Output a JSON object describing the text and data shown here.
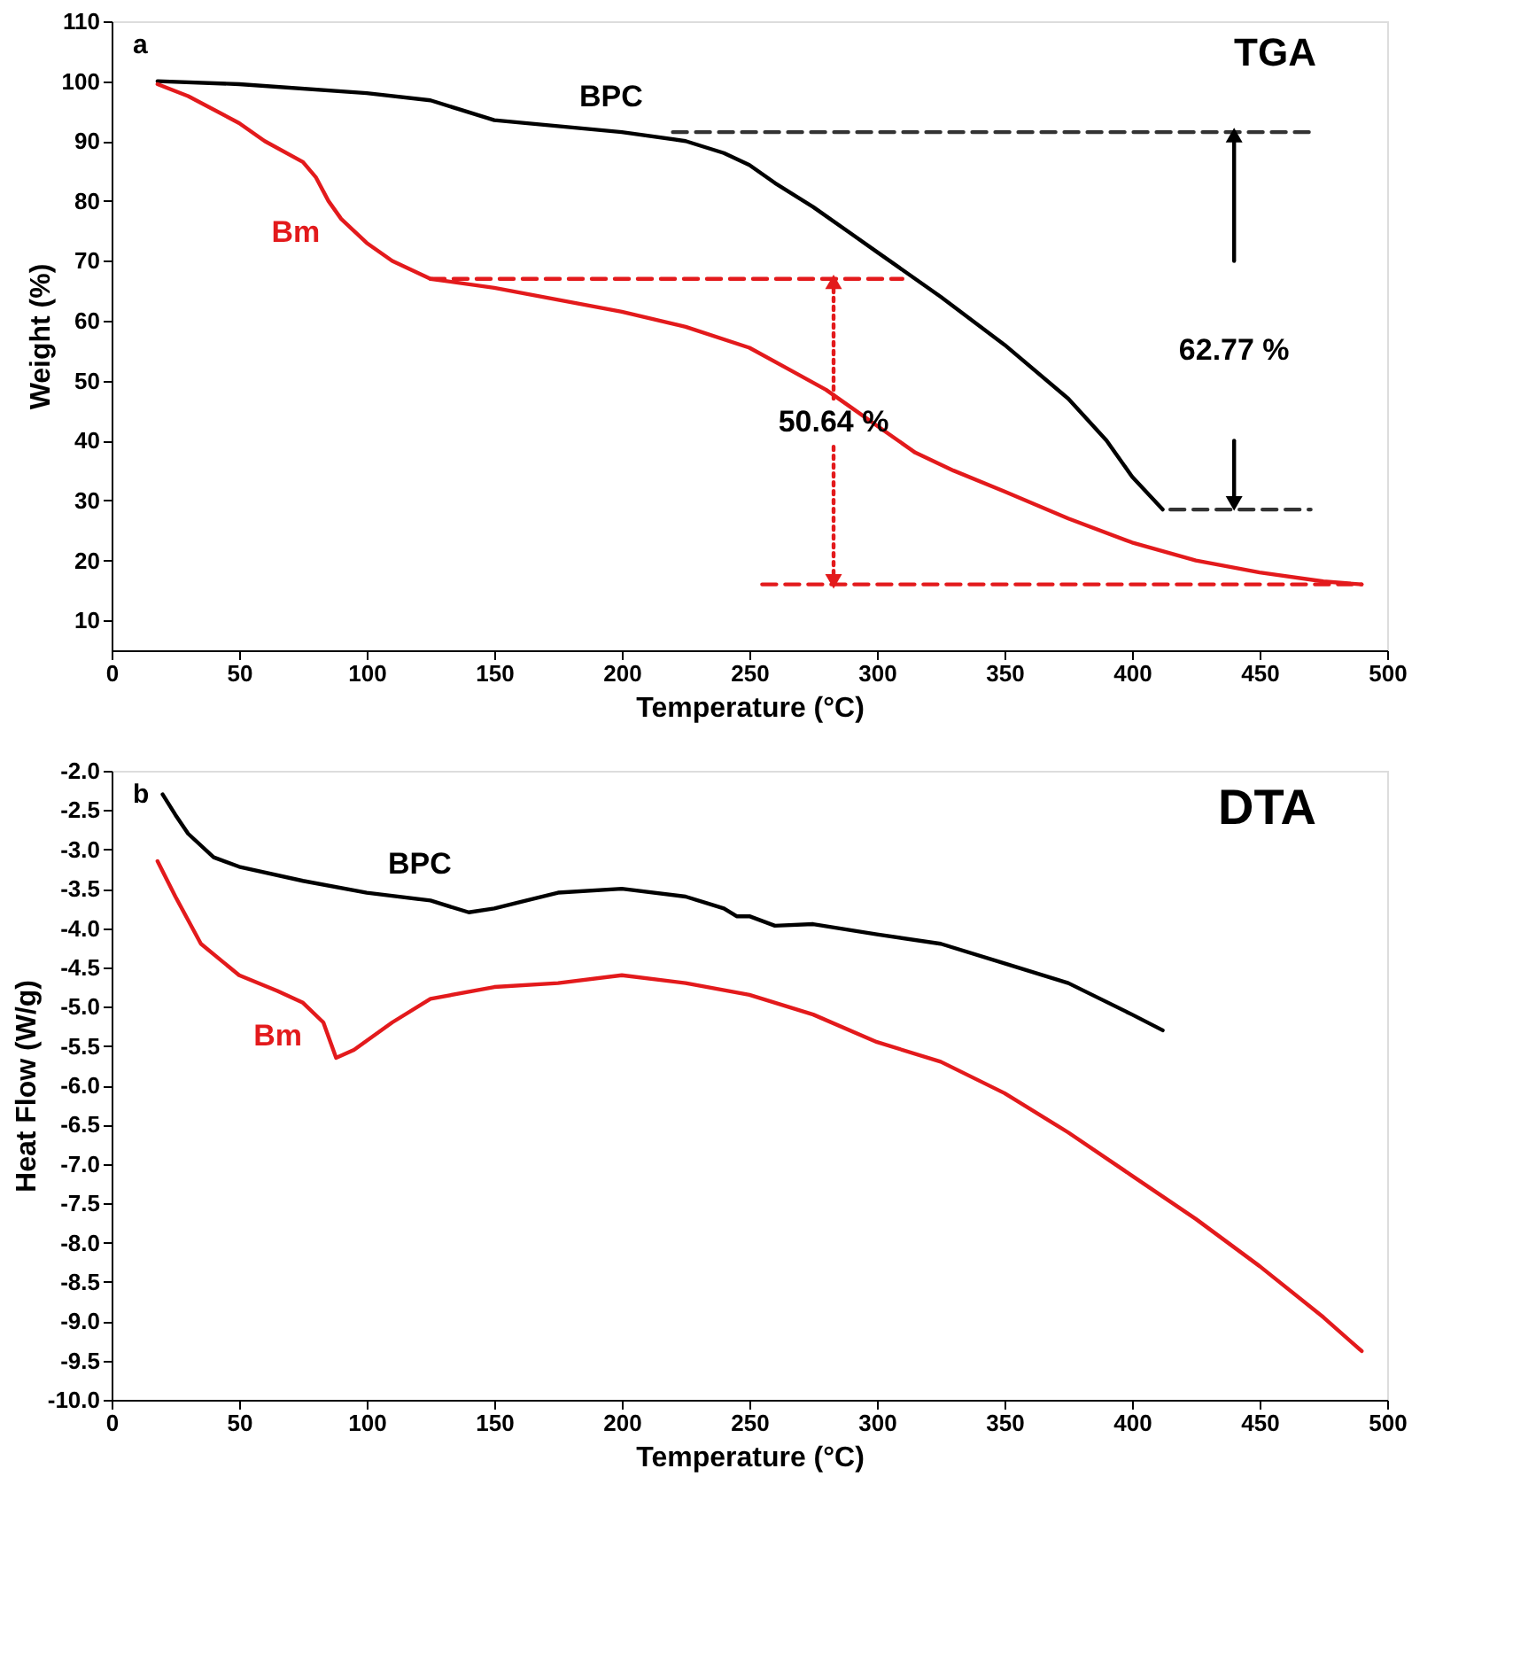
{
  "chart_data": [
    {
      "type": "line",
      "title": "TGA",
      "xlabel": "Temperature (°C)",
      "ylabel": "Weight (%)",
      "annotations": [
        "a",
        "62.77 %",
        "50.64 %"
      ],
      "xlim": [
        0,
        500
      ],
      "ylim": [
        5,
        110
      ],
      "xticks": [
        0,
        50,
        100,
        150,
        200,
        250,
        300,
        350,
        400,
        450,
        500
      ],
      "yticks": [
        10,
        20,
        30,
        40,
        50,
        60,
        70,
        80,
        90,
        100,
        110
      ],
      "grid": false,
      "legend": false,
      "marker": "none",
      "line_style": "solid",
      "series": [
        {
          "name": "BPC",
          "color": "#000000",
          "x": [
            18,
            50,
            100,
            125,
            150,
            175,
            200,
            225,
            240,
            250,
            260,
            275,
            290,
            300,
            325,
            350,
            375,
            390,
            400,
            412
          ],
          "values": [
            100,
            99.5,
            98,
            96.8,
            93.5,
            92.5,
            91.5,
            90,
            88,
            86,
            83,
            79,
            74.5,
            71.5,
            64,
            56,
            47,
            40,
            34,
            28.5
          ]
        },
        {
          "name": "Bm",
          "color": "#e31a1c",
          "x": [
            18,
            30,
            50,
            60,
            75,
            80,
            85,
            90,
            100,
            110,
            125,
            150,
            175,
            200,
            225,
            250,
            265,
            280,
            290,
            300,
            315,
            330,
            350,
            375,
            400,
            425,
            450,
            475,
            490
          ],
          "values": [
            99.5,
            97.5,
            93,
            90,
            86.5,
            84,
            80,
            77,
            73,
            70,
            67,
            65.5,
            63.5,
            61.5,
            59,
            55.5,
            52,
            48.5,
            45.5,
            42.5,
            38,
            35,
            31.5,
            27,
            23,
            20,
            18,
            16.5,
            16
          ]
        },
        {
          "color": "#333333",
          "line_style": "dashed",
          "x": [
            220,
            470
          ],
          "values": [
            91.5,
            91.5
          ]
        },
        {
          "color": "#333333",
          "line_style": "dashed",
          "x": [
            415,
            470
          ],
          "values": [
            28.5,
            28.5
          ]
        },
        {
          "color": "#000000",
          "marker": "triangle",
          "x": [
            440,
            440
          ],
          "values": [
            70,
            91
          ]
        },
        {
          "color": "#000000",
          "marker": "triangle",
          "x": [
            440,
            440
          ],
          "values": [
            40,
            29.5
          ]
        },
        {
          "color": "#e31a1c",
          "line_style": "dashed",
          "x": [
            125,
            310
          ],
          "values": [
            67,
            67
          ]
        },
        {
          "color": "#e31a1c",
          "line_style": "dashed",
          "x": [
            255,
            490
          ],
          "values": [
            16,
            16
          ]
        },
        {
          "color": "#e31a1c",
          "line_style": "dotted",
          "marker": "triangle",
          "x": [
            283,
            283
          ],
          "values": [
            47,
            66.5
          ]
        },
        {
          "color": "#e31a1c",
          "line_style": "dotted",
          "marker": "triangle",
          "x": [
            283,
            283
          ],
          "values": [
            39,
            16.5
          ]
        }
      ]
    },
    {
      "type": "line",
      "title": "DTA",
      "xlabel": "Temperature (°C)",
      "ylabel": "Heat Flow (W/g)",
      "annotations": [
        "b"
      ],
      "xlim": [
        0,
        500
      ],
      "ylim": [
        -10,
        -2
      ],
      "xticks": [
        0,
        50,
        100,
        150,
        200,
        250,
        300,
        350,
        400,
        450,
        500
      ],
      "yticks": [
        {
          "value": -10,
          "label": "-10.0"
        },
        {
          "value": -9.5,
          "label": "-9.5"
        },
        {
          "value": -9,
          "label": "-9.0"
        },
        {
          "value": -8.5,
          "label": "-8.5"
        },
        {
          "value": -8,
          "label": "-8.0"
        },
        {
          "value": -7.5,
          "label": "-7.5"
        },
        {
          "value": -7,
          "label": "-7.0"
        },
        {
          "value": -6.5,
          "label": "-6.5"
        },
        {
          "value": -6,
          "label": "-6.0"
        },
        {
          "value": -5.5,
          "label": "-5.5"
        },
        {
          "value": -5,
          "label": "-5.0"
        },
        {
          "value": -4.5,
          "label": "-4.5"
        },
        {
          "value": -4,
          "label": "-4.0"
        },
        {
          "value": -3.5,
          "label": "-3.5"
        },
        {
          "value": -3,
          "label": "-3.0"
        },
        {
          "value": -2.5,
          "label": "-2.5"
        },
        {
          "value": -2,
          "label": "-2.0"
        }
      ],
      "grid": false,
      "legend": false,
      "marker": "none",
      "line_style": "solid",
      "series": [
        {
          "name": "BPC",
          "color": "#000000",
          "x": [
            20,
            25,
            30,
            40,
            50,
            75,
            100,
            125,
            140,
            150,
            175,
            200,
            225,
            240,
            245,
            250,
            260,
            275,
            300,
            325,
            350,
            375,
            400,
            412
          ],
          "values": [
            -2.3,
            -2.56,
            -2.8,
            -3.1,
            -3.22,
            -3.4,
            -3.55,
            -3.65,
            -3.8,
            -3.75,
            -3.55,
            -3.5,
            -3.6,
            -3.75,
            -3.85,
            -3.85,
            -3.97,
            -3.95,
            -4.08,
            -4.2,
            -4.45,
            -4.7,
            -5.1,
            -5.3
          ]
        },
        {
          "name": "Bm",
          "color": "#e31a1c",
          "x": [
            18,
            25,
            35,
            50,
            65,
            75,
            83,
            88,
            95,
            110,
            125,
            150,
            175,
            200,
            225,
            250,
            275,
            300,
            325,
            350,
            375,
            400,
            425,
            450,
            475,
            490
          ],
          "values": [
            -3.15,
            -3.6,
            -4.2,
            -4.6,
            -4.8,
            -4.95,
            -5.2,
            -5.65,
            -5.55,
            -5.2,
            -4.9,
            -4.75,
            -4.7,
            -4.6,
            -4.7,
            -4.85,
            -5.1,
            -5.45,
            -5.7,
            -6.1,
            -6.6,
            -7.15,
            -7.7,
            -8.3,
            -8.95,
            -9.38
          ]
        }
      ]
    }
  ]
}
